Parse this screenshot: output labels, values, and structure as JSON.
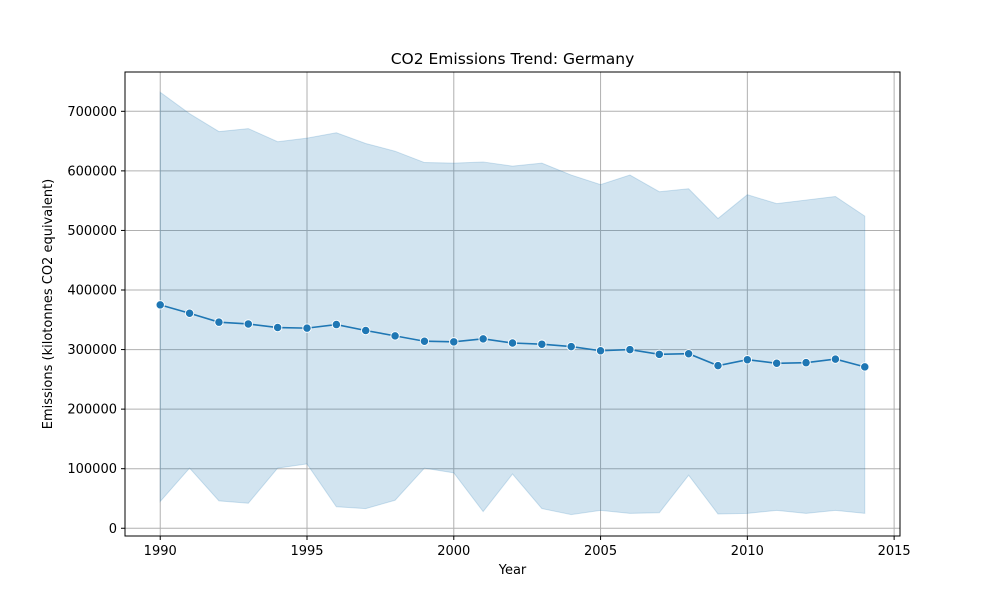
{
  "chart_data": {
    "type": "line",
    "title": "CO2 Emissions Trend: Germany",
    "xlabel": "Year",
    "ylabel": "Emissions (kilotonnes CO2 equivalent)",
    "xlim": [
      1988.8,
      2015.2
    ],
    "ylim": [
      -13000,
      766000
    ],
    "xticks": [
      1990,
      1995,
      2000,
      2005,
      2010,
      2015
    ],
    "yticks": [
      0,
      100000,
      200000,
      300000,
      400000,
      500000,
      600000,
      700000
    ],
    "grid": true,
    "colors": {
      "line": "#1f77b4",
      "band": "#1f77b4",
      "grid": "#b0b0b0"
    },
    "x": [
      1990,
      1991,
      1992,
      1993,
      1994,
      1995,
      1996,
      1997,
      1998,
      1999,
      2000,
      2001,
      2002,
      2003,
      2004,
      2005,
      2006,
      2007,
      2008,
      2009,
      2010,
      2011,
      2012,
      2013,
      2014
    ],
    "series": [
      {
        "values": [
          375000,
          361000,
          346000,
          343000,
          337000,
          336000,
          342000,
          332000,
          323000,
          314000,
          313000,
          318000,
          311000,
          309000,
          305000,
          298000,
          300000,
          292000,
          293000,
          273000,
          283000,
          277000,
          278000,
          284000,
          271000
        ],
        "band_upper": [
          732000,
          696000,
          666000,
          671000,
          649000,
          655000,
          664000,
          646000,
          633000,
          614000,
          613000,
          615000,
          608000,
          613000,
          593000,
          577000,
          593000,
          565000,
          570000,
          520000,
          560000,
          545000,
          551000,
          557000,
          524000
        ],
        "band_lower": [
          45000,
          101000,
          46000,
          42000,
          101000,
          108000,
          36000,
          33000,
          47000,
          101000,
          93000,
          28000,
          91000,
          33000,
          23000,
          30000,
          25000,
          26000,
          89000,
          24000,
          25000,
          30000,
          25000,
          30000,
          25000
        ]
      }
    ]
  }
}
